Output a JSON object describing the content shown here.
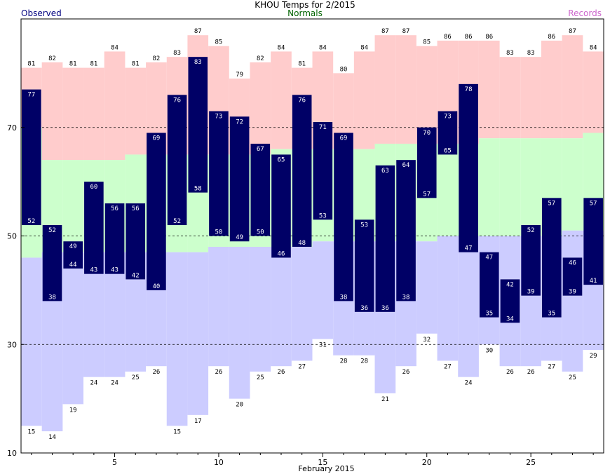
{
  "title": "KHOU Temps for 2/2015",
  "legend": {
    "observed": "Observed",
    "normals": "Normals",
    "records": "Records",
    "observed_color": "#000080",
    "normals_color": "#006400",
    "records_color": "#cc66cc"
  },
  "colors": {
    "observed_bar": "#000066",
    "record_high_fill": "#ffcccc",
    "normal_fill": "#ccffcc",
    "record_low_fill": "#ccccff",
    "value_label_on_bar": "#ffffff",
    "value_label": "#000000"
  },
  "chart_data": {
    "type": "bar",
    "title": "KHOU Temps for 2/2015",
    "xlabel": "February 2015",
    "ylabel": "",
    "days": [
      1,
      2,
      3,
      4,
      5,
      6,
      7,
      8,
      9,
      10,
      11,
      12,
      13,
      14,
      15,
      16,
      17,
      18,
      19,
      20,
      21,
      22,
      23,
      24,
      25,
      26,
      27,
      28
    ],
    "xlim": [
      0.5,
      28.5
    ],
    "ylim": [
      10,
      90
    ],
    "x_ticks": [
      5,
      10,
      15,
      20,
      25
    ],
    "y_ticks": [
      10,
      30,
      50,
      70
    ],
    "grid": "dashed horizontal at 30, 50, 70",
    "series": [
      {
        "name": "Observed",
        "highs": [
          77,
          52,
          49,
          60,
          56,
          56,
          69,
          76,
          83,
          73,
          72,
          67,
          65,
          76,
          71,
          69,
          53,
          63,
          64,
          70,
          73,
          78,
          47,
          42,
          52,
          57,
          46,
          57
        ],
        "lows": [
          52,
          38,
          44,
          43,
          43,
          42,
          40,
          52,
          58,
          50,
          49,
          50,
          46,
          48,
          53,
          38,
          36,
          36,
          38,
          57,
          65,
          47,
          35,
          34,
          39,
          35,
          39,
          41
        ]
      },
      {
        "name": "Records",
        "highs": [
          81,
          82,
          81,
          81,
          84,
          81,
          82,
          83,
          87,
          85,
          79,
          82,
          84,
          81,
          84,
          80,
          84,
          87,
          87,
          85,
          86,
          86,
          86,
          83,
          83,
          86,
          87,
          84
        ],
        "lows": [
          15,
          14,
          19,
          24,
          24,
          25,
          26,
          15,
          17,
          26,
          20,
          25,
          26,
          27,
          31,
          28,
          28,
          21,
          26,
          32,
          27,
          24,
          30,
          26,
          26,
          27,
          25,
          29
        ]
      },
      {
        "name": "Normals",
        "highs": [
          70,
          64,
          64,
          64,
          64,
          65,
          65,
          65,
          65,
          65,
          65,
          65,
          66,
          66,
          66,
          66,
          66,
          67,
          67,
          67,
          67,
          67,
          68,
          68,
          68,
          68,
          68,
          69
        ],
        "lows": [
          46,
          47,
          47,
          47,
          47,
          47,
          47,
          47,
          47,
          48,
          48,
          48,
          48,
          48,
          49,
          49,
          49,
          49,
          49,
          49,
          50,
          50,
          50,
          50,
          50,
          50,
          51,
          51
        ]
      }
    ]
  }
}
